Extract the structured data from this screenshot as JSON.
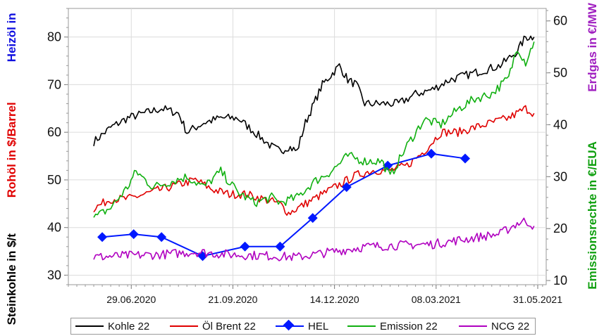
{
  "chart_data": {
    "type": "line",
    "x_ticks": [
      "29.06.2020",
      "21.09.2020",
      "14.12.2020",
      "08.03.2021",
      "31.05.2021"
    ],
    "x_range": [
      "2020-05-08",
      "2021-06-07"
    ],
    "axes": {
      "left": {
        "labels": [
          {
            "text": "Heizöl in",
            "color": "#1010e0"
          },
          {
            "text": "Rohöl in $/Barrel",
            "color": "#e00000"
          },
          {
            "text": "Steinkohle in $/t",
            "color": "#000000"
          }
        ],
        "ylim": [
          28,
          86
        ],
        "ticks": [
          30,
          40,
          50,
          60,
          70,
          80
        ]
      },
      "right": {
        "labels": [
          {
            "text": "Erdgas in €/MW",
            "color": "#a020c0"
          },
          {
            "text": "Emissionsrechte in €/EUA",
            "color": "#10a010"
          }
        ],
        "ylim": [
          9.2,
          62.4
        ],
        "ticks": [
          10,
          20,
          30,
          40,
          50,
          60
        ]
      }
    },
    "grid": true,
    "legend_position": "bottom",
    "series": [
      {
        "name": "Kohle 22",
        "axis": "left",
        "color": "#000000",
        "style": "noisy",
        "x": [
          "2020-05-29",
          "2020-06-12",
          "2020-06-26",
          "2020-07-10",
          "2020-07-24",
          "2020-08-07",
          "2020-08-14",
          "2020-08-28",
          "2020-09-11",
          "2020-09-25",
          "2020-10-09",
          "2020-10-23",
          "2020-10-30",
          "2020-11-06",
          "2020-11-13",
          "2020-11-20",
          "2020-11-27",
          "2020-12-04",
          "2020-12-11",
          "2020-12-18",
          "2020-12-25",
          "2021-01-01",
          "2021-01-08",
          "2021-01-22",
          "2021-02-05",
          "2021-02-19",
          "2021-03-05",
          "2021-03-19",
          "2021-04-02",
          "2021-04-16",
          "2021-04-30",
          "2021-05-14",
          "2021-05-21",
          "2021-05-28"
        ],
        "y": [
          58,
          61,
          63,
          64,
          65,
          64,
          60,
          62,
          63,
          63,
          60,
          57,
          56,
          57,
          56,
          62,
          66,
          70,
          72,
          74,
          71,
          70,
          66,
          66,
          66,
          68,
          69,
          71,
          72,
          73,
          74,
          77,
          80,
          80
        ]
      },
      {
        "name": "Öl Brent 22",
        "axis": "left",
        "color": "#e00000",
        "style": "noisy",
        "x": [
          "2020-05-29",
          "2020-06-12",
          "2020-06-26",
          "2020-07-10",
          "2020-07-24",
          "2020-08-07",
          "2020-08-21",
          "2020-09-04",
          "2020-09-18",
          "2020-10-02",
          "2020-10-16",
          "2020-10-30",
          "2020-11-06",
          "2020-11-20",
          "2020-12-04",
          "2020-12-18",
          "2021-01-01",
          "2021-01-15",
          "2021-01-29",
          "2021-02-12",
          "2021-02-26",
          "2021-03-12",
          "2021-03-26",
          "2021-04-09",
          "2021-04-23",
          "2021-05-07",
          "2021-05-21",
          "2021-05-28"
        ],
        "y": [
          44,
          46,
          46,
          47,
          48,
          49,
          50,
          48,
          47,
          47,
          46,
          45,
          43,
          45,
          47,
          49,
          51,
          52,
          52,
          53,
          56,
          60,
          60,
          61,
          62,
          63,
          65,
          64
        ]
      },
      {
        "name": "HEL",
        "axis": "left",
        "color": "#0018ff",
        "style": "markers",
        "x": [
          "2020-06-05",
          "2020-07-01",
          "2020-07-24",
          "2020-08-27",
          "2020-10-01",
          "2020-10-30",
          "2020-11-26",
          "2020-12-24",
          "2021-01-27",
          "2021-03-04",
          "2021-04-01"
        ],
        "y": [
          38,
          38.6,
          38,
          34,
          36,
          36,
          42,
          48.5,
          53,
          55.5,
          54.5
        ]
      },
      {
        "name": "Emission 22",
        "axis": "right",
        "color": "#10b010",
        "style": "noisy",
        "x": [
          "2020-05-29",
          "2020-06-12",
          "2020-06-26",
          "2020-07-03",
          "2020-07-17",
          "2020-07-31",
          "2020-08-14",
          "2020-08-28",
          "2020-09-11",
          "2020-09-25",
          "2020-10-09",
          "2020-10-23",
          "2020-10-30",
          "2020-11-13",
          "2020-11-27",
          "2020-12-11",
          "2020-12-25",
          "2021-01-08",
          "2021-01-22",
          "2021-01-29",
          "2021-02-12",
          "2021-02-26",
          "2021-03-12",
          "2021-03-26",
          "2021-04-09",
          "2021-04-23",
          "2021-05-07",
          "2021-05-14",
          "2021-05-21",
          "2021-05-28"
        ],
        "y": [
          22,
          24,
          28,
          31,
          28,
          29,
          30,
          28,
          31,
          27,
          25,
          26,
          25,
          26,
          29,
          31,
          34,
          33,
          33,
          30,
          36,
          41,
          40,
          43,
          45,
          46,
          49,
          55,
          52,
          56
        ]
      },
      {
        "name": "NCG 22",
        "axis": "right",
        "color": "#b000c0",
        "style": "noisy",
        "x": [
          "2020-05-29",
          "2020-06-26",
          "2020-07-24",
          "2020-08-21",
          "2020-09-18",
          "2020-10-16",
          "2020-11-13",
          "2020-12-11",
          "2021-01-08",
          "2021-02-05",
          "2021-03-05",
          "2021-04-02",
          "2021-04-30",
          "2021-05-14",
          "2021-05-21",
          "2021-05-28"
        ],
        "y": [
          14.5,
          14.8,
          15,
          15.5,
          15,
          14.8,
          14.5,
          15.5,
          16.5,
          16.8,
          17,
          18,
          19,
          21,
          21.5,
          20.5
        ]
      }
    ]
  }
}
